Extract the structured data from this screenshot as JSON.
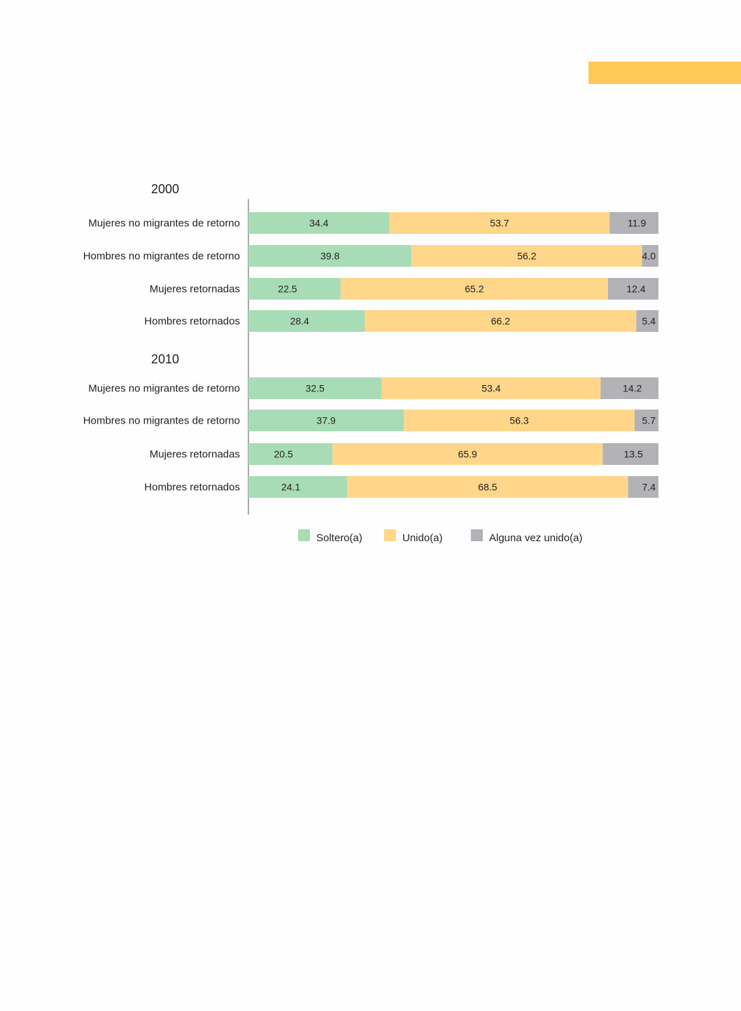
{
  "page": {
    "accent_color": "#ffc857"
  },
  "chart_data": {
    "type": "bar",
    "orientation": "horizontal",
    "stacked": true,
    "unit": "percent",
    "xlim": [
      0,
      100
    ],
    "grid": false,
    "legend_position": "bottom",
    "categories": [
      "Mujeres no migrantes de retorno",
      "Hombres no migrantes de retorno",
      "Mujeres retornadas",
      "Hombres retornados"
    ],
    "series_names": [
      "Soltero(a)",
      "Unido(a)",
      "Alguna vez unido(a)"
    ],
    "colors": [
      "#a8dcb6",
      "#ffd68a",
      "#b2b2b7"
    ],
    "groups": [
      {
        "title": "2000",
        "rows": [
          {
            "category": "Mujeres no migrantes de retorno",
            "values": [
              34.4,
              53.7,
              11.9
            ]
          },
          {
            "category": "Hombres no migrantes de retorno",
            "values": [
              39.8,
              56.2,
              4.0
            ]
          },
          {
            "category": "Mujeres retornadas",
            "values": [
              22.5,
              65.2,
              12.4
            ]
          },
          {
            "category": "Hombres retornados",
            "values": [
              28.4,
              66.2,
              5.4
            ]
          }
        ]
      },
      {
        "title": "2010",
        "rows": [
          {
            "category": "Mujeres no migrantes de retorno",
            "values": [
              32.5,
              53.4,
              14.2
            ]
          },
          {
            "category": "Hombres no migrantes de retorno",
            "values": [
              37.9,
              56.3,
              5.7
            ]
          },
          {
            "category": "Mujeres retornadas",
            "values": [
              20.5,
              65.9,
              13.5
            ]
          },
          {
            "category": "Hombres retornados",
            "values": [
              24.1,
              68.5,
              7.4
            ]
          }
        ]
      }
    ]
  }
}
